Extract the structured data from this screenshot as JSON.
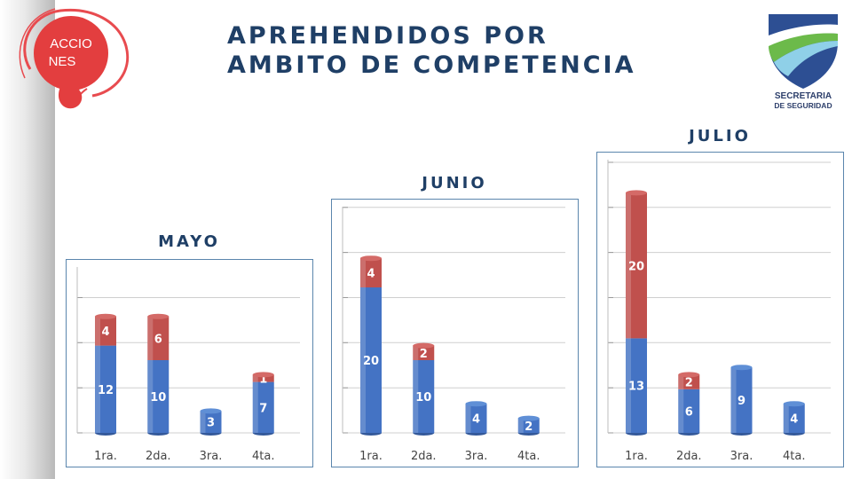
{
  "branding": {
    "left_logo_text_line1": "ACCIO",
    "left_logo_text_line2": "NES",
    "right_logo_text_line1": "SECRETARIA",
    "right_logo_text_line2": "DE SEGURIDAD"
  },
  "title": {
    "line1": "APREHENDIDOS POR",
    "line2": "AMBITO DE COMPETENCIA"
  },
  "colors": {
    "blue_series": "#4473c4",
    "red_series": "#c0504d",
    "title": "#1f3f66",
    "frame": "#5b86ad"
  },
  "chart_data": [
    {
      "type": "bar",
      "stacked": true,
      "title": "MAYO",
      "categories": [
        "1ra.",
        "2da.",
        "3ra.",
        "4ta."
      ],
      "series": [
        {
          "values": [
            12,
            10,
            3,
            7
          ]
        },
        {
          "values": [
            4,
            6,
            0,
            1
          ]
        }
      ],
      "ylim": [
        0,
        20
      ],
      "grid": true
    },
    {
      "type": "bar",
      "stacked": true,
      "title": "JUNIO",
      "categories": [
        "1ra.",
        "2da.",
        "3ra.",
        "4ta."
      ],
      "series": [
        {
          "values": [
            20,
            10,
            4,
            2
          ]
        },
        {
          "values": [
            4,
            2,
            0,
            0
          ]
        }
      ],
      "ylim": [
        0,
        25
      ],
      "grid": true
    },
    {
      "type": "bar",
      "stacked": true,
      "title": "JULIO",
      "categories": [
        "1ra.",
        "2da.",
        "3ra.",
        "4ta."
      ],
      "series": [
        {
          "values": [
            13,
            6,
            9,
            4
          ]
        },
        {
          "values": [
            20,
            2,
            0,
            0
          ]
        }
      ],
      "ylim": [
        0,
        35
      ],
      "grid": true
    }
  ]
}
